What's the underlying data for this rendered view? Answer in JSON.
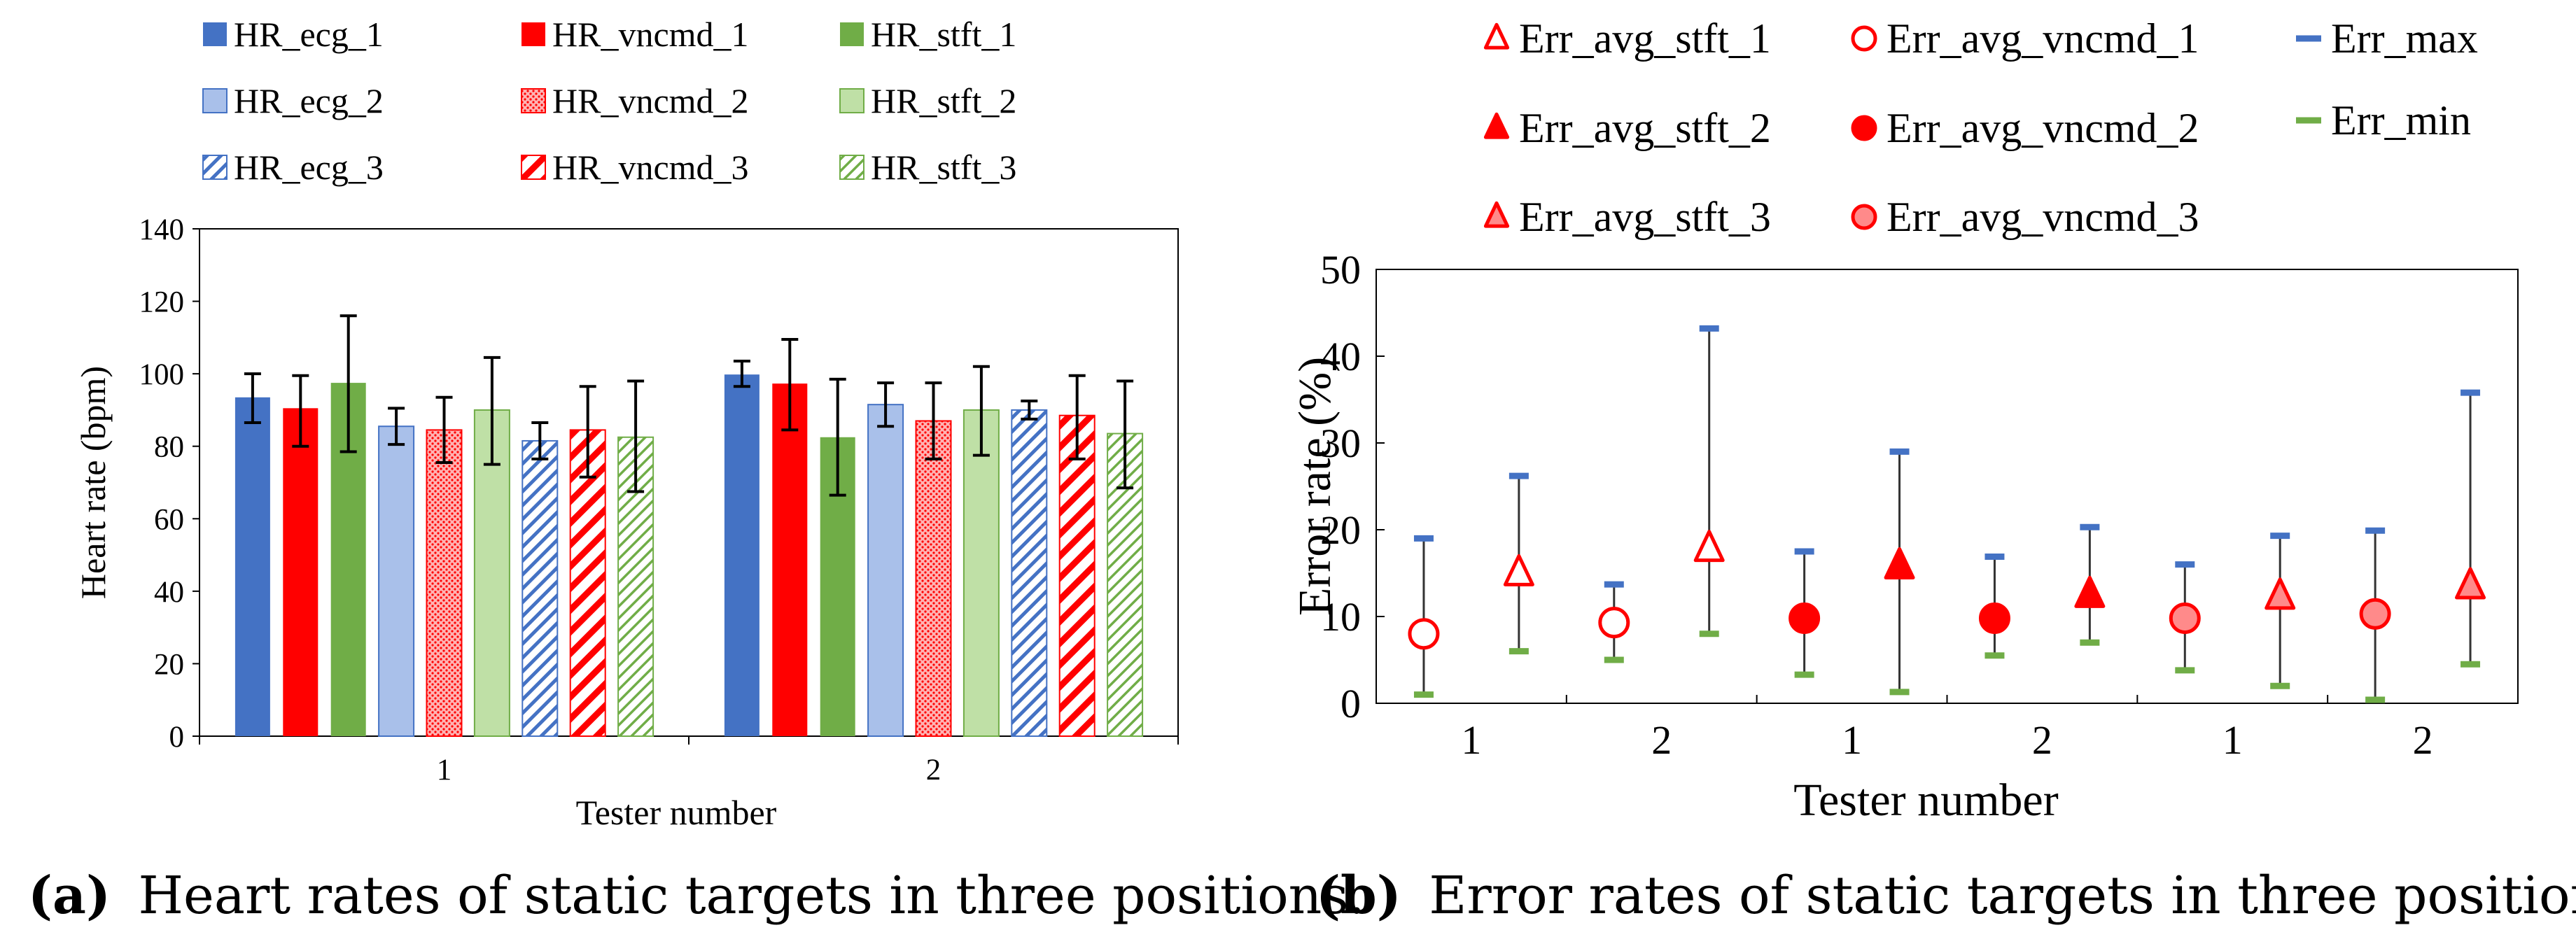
{
  "chart_data": [
    {
      "id": "a",
      "type": "bar",
      "ylabel": "Heart rate (bpm)",
      "xlabel": "Tester number",
      "ylim": [
        0,
        140
      ],
      "yticks": [
        0,
        20,
        40,
        60,
        80,
        100,
        120,
        140
      ],
      "categories": [
        "1",
        "2"
      ],
      "series": [
        {
          "name": "HR_ecg_1",
          "color": "#4472C4",
          "pattern": "solid",
          "values": [
            93.5,
            99.8
          ],
          "err_low": [
            86.5,
            96.5
          ],
          "err_high": [
            100.0,
            103.5
          ]
        },
        {
          "name": "HR_vncmd_1",
          "color": "#FF0000",
          "pattern": "solid",
          "values": [
            90.5,
            97.3
          ],
          "err_low": [
            80.0,
            84.5
          ],
          "err_high": [
            99.5,
            109.5
          ]
        },
        {
          "name": "HR_stft_1",
          "color": "#70AD47",
          "pattern": "solid",
          "values": [
            97.5,
            82.5
          ],
          "err_low": [
            78.5,
            66.5
          ],
          "err_high": [
            116.0,
            98.5
          ]
        },
        {
          "name": "HR_ecg_2",
          "color": "#4472C4",
          "pattern": "light",
          "values": [
            85.5,
            91.5
          ],
          "err_low": [
            80.5,
            85.5
          ],
          "err_high": [
            90.5,
            97.5
          ]
        },
        {
          "name": "HR_vncmd_2",
          "color": "#FF0000",
          "pattern": "dots",
          "values": [
            84.5,
            87.0
          ],
          "err_low": [
            75.5,
            76.5
          ],
          "err_high": [
            93.5,
            97.5
          ]
        },
        {
          "name": "HR_stft_2",
          "color": "#70AD47",
          "pattern": "light",
          "values": [
            90.0,
            90.0
          ],
          "err_low": [
            75.0,
            77.5
          ],
          "err_high": [
            104.5,
            102.0
          ]
        },
        {
          "name": "HR_ecg_3",
          "color": "#4472C4",
          "pattern": "hatch",
          "values": [
            81.5,
            90.0
          ],
          "err_low": [
            76.5,
            87.5
          ],
          "err_high": [
            86.5,
            92.5
          ]
        },
        {
          "name": "HR_vncmd_3",
          "color": "#FF0000",
          "pattern": "hatch",
          "values": [
            84.5,
            88.5
          ],
          "err_low": [
            71.5,
            76.5
          ],
          "err_high": [
            96.5,
            99.5
          ]
        },
        {
          "name": "HR_stft_3",
          "color": "#70AD47",
          "pattern": "hatch",
          "values": [
            82.5,
            83.5
          ],
          "err_low": [
            67.5,
            68.5
          ],
          "err_high": [
            98.0,
            98.0
          ]
        }
      ],
      "legend": "top",
      "caption_label": "(a)",
      "caption_text": "Heart rates of static targets in three positions."
    },
    {
      "id": "b",
      "type": "scatter",
      "ylabel": "Error rate (%)",
      "xlabel": "Tester number",
      "ylim": [
        0,
        50
      ],
      "yticks": [
        0,
        10,
        20,
        30,
        40,
        50
      ],
      "x_tick_labels": [
        "1",
        "2",
        "1",
        "2",
        "1",
        "2"
      ],
      "series": [
        {
          "name": "Err_avg_stft_1",
          "marker": "triangle",
          "style": "open"
        },
        {
          "name": "Err_avg_vncmd_1",
          "marker": "circle",
          "style": "open"
        },
        {
          "name": "Err_max",
          "marker": "dash",
          "color": "#4472C4"
        },
        {
          "name": "Err_avg_stft_2",
          "marker": "triangle",
          "style": "filled"
        },
        {
          "name": "Err_avg_vncmd_2",
          "marker": "circle",
          "style": "filled"
        },
        {
          "name": "Err_min",
          "marker": "dash",
          "color": "#70AD47"
        },
        {
          "name": "Err_avg_stft_3",
          "marker": "triangle",
          "style": "light"
        },
        {
          "name": "Err_avg_vncmd_3",
          "marker": "circle",
          "style": "light"
        }
      ],
      "points": [
        {
          "slot": 0.5,
          "series": "Err_avg_vncmd_1",
          "avg": 8.0,
          "max": 19.0,
          "min": 1.0
        },
        {
          "slot": 1.5,
          "series": "Err_avg_stft_1",
          "avg": 15.0,
          "max": 26.2,
          "min": 6.0
        },
        {
          "slot": 2.5,
          "series": "Err_avg_vncmd_1",
          "avg": 9.3,
          "max": 13.7,
          "min": 5.0
        },
        {
          "slot": 3.5,
          "series": "Err_avg_stft_1",
          "avg": 17.8,
          "max": 43.2,
          "min": 8.0
        },
        {
          "slot": 4.5,
          "series": "Err_avg_vncmd_2",
          "avg": 9.8,
          "max": 17.5,
          "min": 3.3
        },
        {
          "slot": 5.5,
          "series": "Err_avg_stft_2",
          "avg": 15.8,
          "max": 29.0,
          "min": 1.3
        },
        {
          "slot": 6.5,
          "series": "Err_avg_vncmd_2",
          "avg": 9.8,
          "max": 16.9,
          "min": 5.5
        },
        {
          "slot": 7.5,
          "series": "Err_avg_stft_2",
          "avg": 12.5,
          "max": 20.3,
          "min": 7.0
        },
        {
          "slot": 8.5,
          "series": "Err_avg_vncmd_3",
          "avg": 9.8,
          "max": 16.0,
          "min": 3.8
        },
        {
          "slot": 9.5,
          "series": "Err_avg_stft_3",
          "avg": 12.3,
          "max": 19.3,
          "min": 2.0
        },
        {
          "slot": 10.5,
          "series": "Err_avg_vncmd_3",
          "avg": 10.3,
          "max": 19.9,
          "min": 0.4
        },
        {
          "slot": 11.5,
          "series": "Err_avg_stft_3",
          "avg": 13.5,
          "max": 35.8,
          "min": 4.5
        }
      ],
      "legend": "top",
      "caption_label": "(b)",
      "caption_text": "Error rates of static targets in three positions."
    }
  ]
}
